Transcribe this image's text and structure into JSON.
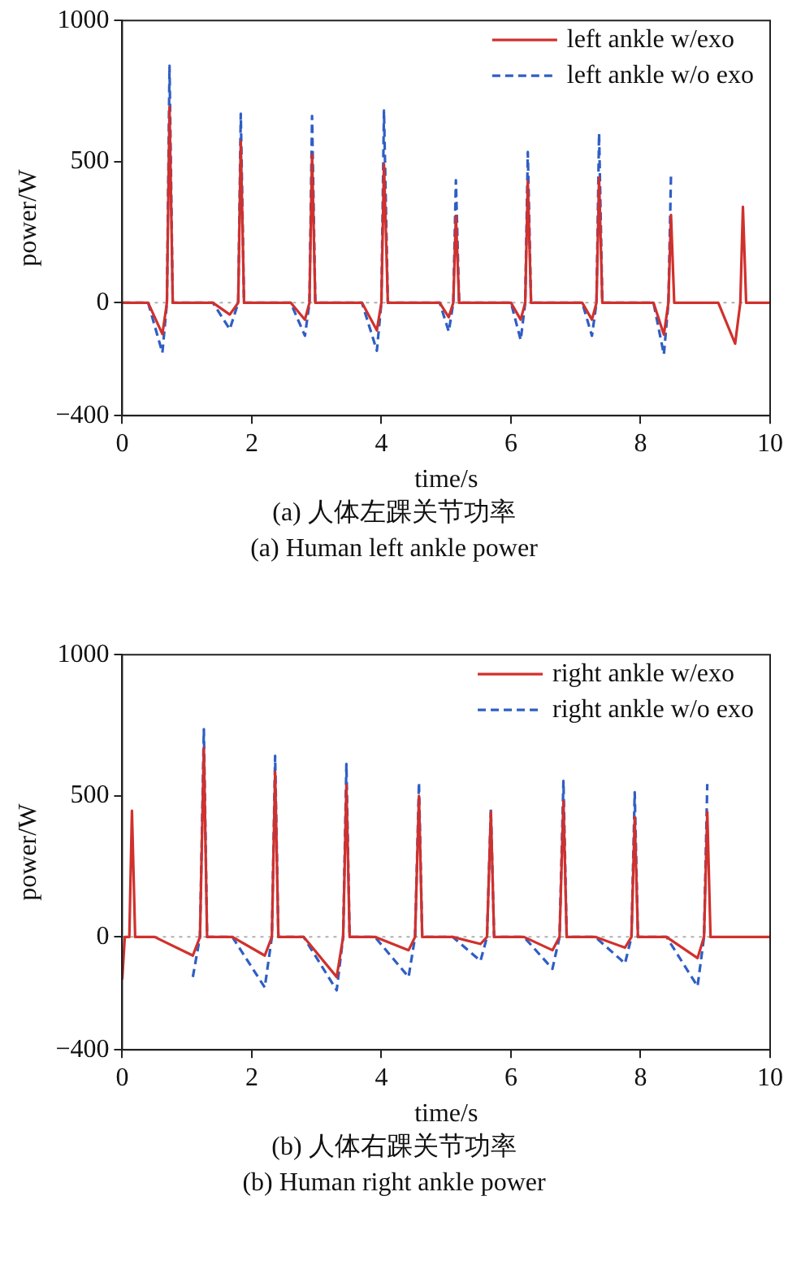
{
  "chart_data": [
    {
      "type": "line",
      "xlabel": "time/s",
      "ylabel": "power/W",
      "xlim": [
        0,
        10
      ],
      "xticks": [
        0,
        2,
        4,
        6,
        8,
        10
      ],
      "ylim": [
        -400,
        1000
      ],
      "yticks": [
        1000,
        500,
        0,
        {
          "value": -400,
          "label": "−400"
        }
      ],
      "grid": false,
      "legend": "top right",
      "annotations": [
        "(a) 人体左踝关节功率",
        "(a) Human left ankle power"
      ],
      "ref_lines": [
        {
          "axis": "y",
          "value": 0,
          "color": "#b0b0b0",
          "line_style": "dotted"
        }
      ],
      "series": [
        {
          "name": "left ankle w/exo",
          "color": "#d0312d",
          "line_style": "solid",
          "x": [
            0,
            0.4,
            0.62,
            0.69,
            0.73,
            0.78,
            1.4,
            1.66,
            1.79,
            1.83,
            1.88,
            2.6,
            2.82,
            2.89,
            2.93,
            2.98,
            3.7,
            3.93,
            4.0,
            4.04,
            4.1,
            4.9,
            5.04,
            5.11,
            5.15,
            5.2,
            6.0,
            6.15,
            6.22,
            6.26,
            6.31,
            7.1,
            7.25,
            7.32,
            7.36,
            7.41,
            8.2,
            8.36,
            8.43,
            8.47,
            8.52,
            9.2,
            9.46,
            9.54,
            9.58,
            9.63,
            10
          ],
          "values": [
            0,
            0,
            -111,
            0,
            694,
            0,
            0,
            -42,
            0,
            572,
            0,
            0,
            -60,
            0,
            525,
            0,
            0,
            -98,
            0,
            491,
            0,
            0,
            -51,
            0,
            308,
            0,
            0,
            -60,
            0,
            430,
            0,
            0,
            -60,
            0,
            443,
            0,
            0,
            -113,
            0,
            311,
            0,
            0,
            -145,
            0,
            340,
            0,
            0
          ]
        },
        {
          "name": "left ankle w/o exo",
          "color": "#2f5ec4",
          "line_style": "dashed",
          "x": [
            0,
            0.4,
            0.62,
            0.69,
            0.73,
            0.78,
            1.4,
            1.66,
            1.79,
            1.83,
            1.88,
            2.6,
            2.82,
            2.89,
            2.93,
            2.98,
            3.7,
            3.93,
            4.0,
            4.04,
            4.1,
            4.9,
            5.04,
            5.11,
            5.15,
            5.2,
            6.0,
            6.15,
            6.22,
            6.26,
            6.31,
            7.1,
            7.25,
            7.32,
            7.36,
            7.41,
            8.2,
            8.36,
            8.43,
            8.47
          ],
          "values": [
            0,
            0,
            -177,
            0,
            840,
            0,
            0,
            -94,
            0,
            670,
            0,
            0,
            -117,
            0,
            662,
            0,
            0,
            -170,
            0,
            681,
            0,
            0,
            -102,
            0,
            434,
            0,
            0,
            -132,
            0,
            534,
            0,
            0,
            -117,
            0,
            600,
            0,
            0,
            -183,
            0,
            453
          ]
        }
      ]
    },
    {
      "type": "line",
      "xlabel": "time/s",
      "ylabel": "power/W",
      "xlim": [
        0,
        10
      ],
      "xticks": [
        0,
        2,
        4,
        6,
        8,
        10
      ],
      "ylim": [
        -400,
        1000
      ],
      "yticks": [
        1000,
        500,
        0,
        {
          "value": -400,
          "label": "−400"
        }
      ],
      "grid": false,
      "legend": "top right",
      "annotations": [
        "(b) 人体右踝关节功率",
        "(b) Human right ankle power"
      ],
      "ref_lines": [
        {
          "axis": "y",
          "value": 0,
          "color": "#b0b0b0",
          "line_style": "dotted"
        }
      ],
      "series": [
        {
          "name": "right ankle w/exo",
          "color": "#d0312d",
          "line_style": "solid",
          "x": [
            0,
            0.04,
            0.11,
            0.15,
            0.2,
            0.5,
            1.09,
            1.2,
            1.26,
            1.31,
            1.7,
            2.2,
            2.31,
            2.36,
            2.41,
            2.8,
            3.31,
            3.41,
            3.46,
            3.51,
            3.9,
            4.42,
            4.52,
            4.58,
            4.63,
            5.1,
            5.53,
            5.63,
            5.69,
            5.74,
            6.2,
            6.64,
            6.75,
            6.81,
            6.86,
            7.3,
            7.76,
            7.86,
            7.91,
            7.96,
            8.4,
            8.88,
            8.98,
            9.03,
            9.08,
            9.5,
            10
          ],
          "values": [
            -151,
            0,
            0,
            447,
            0,
            0,
            -66,
            0,
            670,
            0,
            0,
            -66,
            0,
            585,
            0,
            0,
            -142,
            0,
            538,
            0,
            0,
            -47,
            0,
            500,
            0,
            0,
            -25,
            0,
            443,
            0,
            0,
            -47,
            0,
            481,
            0,
            0,
            -38,
            0,
            425,
            0,
            0,
            -75,
            0,
            443,
            0,
            0,
            0
          ]
        },
        {
          "name": "right ankle w/o exo",
          "color": "#2f5ec4",
          "line_style": "dashed",
          "x": [
            1.09,
            1.2,
            1.26,
            1.31,
            1.7,
            2.2,
            2.31,
            2.36,
            2.41,
            2.8,
            3.31,
            3.41,
            3.46,
            3.51,
            3.9,
            4.42,
            4.52,
            4.58,
            4.63,
            5.1,
            5.53,
            5.63,
            5.69,
            5.74,
            6.2,
            6.64,
            6.75,
            6.81,
            6.86,
            7.3,
            7.76,
            7.86,
            7.91,
            7.96,
            8.4,
            8.88,
            8.98,
            9.03
          ],
          "values": [
            -142,
            0,
            736,
            0,
            0,
            -179,
            0,
            642,
            0,
            0,
            -189,
            0,
            613,
            0,
            0,
            -142,
            0,
            547,
            0,
            0,
            -85,
            0,
            453,
            0,
            0,
            -113,
            0,
            553,
            0,
            0,
            -94,
            0,
            513,
            0,
            0,
            -175,
            0,
            542
          ]
        }
      ]
    }
  ]
}
